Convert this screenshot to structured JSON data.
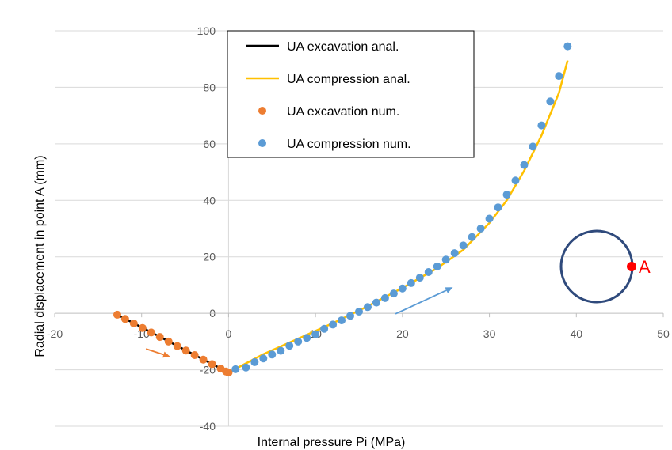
{
  "chart_data": {
    "type": "scatter",
    "xlabel": "Internal pressure Pi (MPa)",
    "ylabel": "Radial displacement in point A (mm)",
    "xlim": [
      -20,
      50
    ],
    "ylim": [
      -40,
      100
    ],
    "x_ticks": [
      "-20",
      "-10",
      "0",
      "10",
      "20",
      "30",
      "40",
      "50"
    ],
    "y_ticks": [
      "-40",
      "-20",
      "0",
      "20",
      "40",
      "60",
      "80",
      "100"
    ],
    "grid": "horizontal",
    "legend_position": "top-left",
    "marker_label": "A",
    "colors": {
      "excavation_line": "#000000",
      "compression_line": "#ffc000",
      "excavation_points": "#ed7d31",
      "compression_points": "#5b9bd5",
      "circle": "#2f4a7c",
      "marker": "#ff0000"
    },
    "series": [
      {
        "name": "UA excavation anal.",
        "kind": "line",
        "color": "#000000",
        "points": [
          [
            -12.8,
            -0.5
          ],
          [
            0,
            -21
          ]
        ]
      },
      {
        "name": "UA compression anal.",
        "kind": "line",
        "color": "#ffc000",
        "points": [
          [
            0,
            -21
          ],
          [
            4,
            -14.5
          ],
          [
            8,
            -9
          ],
          [
            12,
            -3.5
          ],
          [
            16,
            2.5
          ],
          [
            20,
            9
          ],
          [
            24,
            16
          ],
          [
            27,
            22.5
          ],
          [
            30,
            32
          ],
          [
            32,
            40
          ],
          [
            34,
            50.5
          ],
          [
            36,
            63
          ],
          [
            38,
            78
          ],
          [
            39,
            89.5
          ]
        ]
      },
      {
        "name": "UA excavation num.",
        "kind": "points",
        "color": "#ed7d31",
        "points": [
          [
            -12.8,
            -0.5
          ],
          [
            -11.9,
            -2
          ],
          [
            -10.9,
            -3.6
          ],
          [
            -9.9,
            -5.2
          ],
          [
            -8.9,
            -6.8
          ],
          [
            -7.9,
            -8.4
          ],
          [
            -6.9,
            -10
          ],
          [
            -5.9,
            -11.6
          ],
          [
            -4.9,
            -13.2
          ],
          [
            -3.9,
            -14.8
          ],
          [
            -2.9,
            -16.4
          ],
          [
            -1.9,
            -18
          ],
          [
            -0.9,
            -19.6
          ],
          [
            -0.3,
            -20.6
          ],
          [
            0,
            -21
          ]
        ]
      },
      {
        "name": "UA compression num.",
        "kind": "points",
        "color": "#5b9bd5",
        "points": [
          [
            0.8,
            -19.8
          ],
          [
            2,
            -19.2
          ],
          [
            3,
            -17.3
          ],
          [
            4,
            -16
          ],
          [
            5,
            -14.6
          ],
          [
            6,
            -13.3
          ],
          [
            7,
            -11.5
          ],
          [
            8,
            -10
          ],
          [
            9,
            -8.7
          ],
          [
            10,
            -7.4
          ],
          [
            11,
            -5.5
          ],
          [
            12,
            -4
          ],
          [
            13,
            -2.5
          ],
          [
            14,
            -0.9
          ],
          [
            15,
            0.6
          ],
          [
            16,
            2.2
          ],
          [
            17,
            3.8
          ],
          [
            18,
            5.4
          ],
          [
            19,
            7
          ],
          [
            20,
            8.8
          ],
          [
            21,
            10.7
          ],
          [
            22,
            12.6
          ],
          [
            23,
            14.6
          ],
          [
            24,
            16.6
          ],
          [
            25,
            19
          ],
          [
            26,
            21.3
          ],
          [
            27,
            24
          ],
          [
            28,
            27
          ],
          [
            29,
            30
          ],
          [
            30,
            33.5
          ],
          [
            31,
            37.5
          ],
          [
            32,
            42
          ],
          [
            33,
            47
          ],
          [
            34,
            52.5
          ],
          [
            35,
            59
          ],
          [
            36,
            66.5
          ],
          [
            37,
            75
          ],
          [
            38,
            84
          ],
          [
            39,
            94.5
          ]
        ]
      }
    ],
    "arrows": [
      {
        "from": [
          -9.5,
          -12.6
        ],
        "to": [
          -6.7,
          -15.4
        ],
        "color": "#ed7d31"
      },
      {
        "from": [
          19.2,
          -0.2
        ],
        "to": [
          25.8,
          9.2
        ],
        "color": "#5b9bd5"
      }
    ]
  }
}
